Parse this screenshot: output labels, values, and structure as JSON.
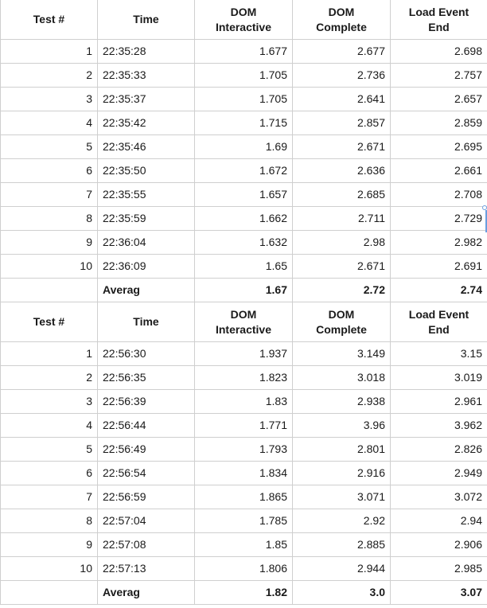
{
  "blocks": [
    {
      "headers": [
        "Test #",
        "Time",
        "DOM\nInteractive",
        "DOM\nComplete",
        "Load Event\nEnd"
      ],
      "rows": [
        {
          "test": "1",
          "time": "22:35:28",
          "dom_interactive": "1.677",
          "dom_complete": "2.677",
          "load_event_end": "2.698"
        },
        {
          "test": "2",
          "time": "22:35:33",
          "dom_interactive": "1.705",
          "dom_complete": "2.736",
          "load_event_end": "2.757"
        },
        {
          "test": "3",
          "time": "22:35:37",
          "dom_interactive": "1.705",
          "dom_complete": "2.641",
          "load_event_end": "2.657"
        },
        {
          "test": "4",
          "time": "22:35:42",
          "dom_interactive": "1.715",
          "dom_complete": "2.857",
          "load_event_end": "2.859"
        },
        {
          "test": "5",
          "time": "22:35:46",
          "dom_interactive": "1.69",
          "dom_complete": "2.671",
          "load_event_end": "2.695"
        },
        {
          "test": "6",
          "time": "22:35:50",
          "dom_interactive": "1.672",
          "dom_complete": "2.636",
          "load_event_end": "2.661"
        },
        {
          "test": "7",
          "time": "22:35:55",
          "dom_interactive": "1.657",
          "dom_complete": "2.685",
          "load_event_end": "2.708"
        },
        {
          "test": "8",
          "time": "22:35:59",
          "dom_interactive": "1.662",
          "dom_complete": "2.711",
          "load_event_end": "2.729"
        },
        {
          "test": "9",
          "time": "22:36:04",
          "dom_interactive": "1.632",
          "dom_complete": "2.98",
          "load_event_end": "2.982"
        },
        {
          "test": "10",
          "time": "22:36:09",
          "dom_interactive": "1.65",
          "dom_complete": "2.671",
          "load_event_end": "2.691"
        }
      ],
      "average": {
        "label": "Averag",
        "dom_interactive": "1.67",
        "dom_complete": "2.72",
        "load_event_end": "2.74"
      }
    },
    {
      "headers": [
        "Test #",
        "Time",
        "DOM\nInteractive",
        "DOM\nComplete",
        "Load Event\nEnd"
      ],
      "rows": [
        {
          "test": "1",
          "time": "22:56:30",
          "dom_interactive": "1.937",
          "dom_complete": "3.149",
          "load_event_end": "3.15"
        },
        {
          "test": "2",
          "time": "22:56:35",
          "dom_interactive": "1.823",
          "dom_complete": "3.018",
          "load_event_end": "3.019"
        },
        {
          "test": "3",
          "time": "22:56:39",
          "dom_interactive": "1.83",
          "dom_complete": "2.938",
          "load_event_end": "2.961"
        },
        {
          "test": "4",
          "time": "22:56:44",
          "dom_interactive": "1.771",
          "dom_complete": "3.96",
          "load_event_end": "3.962"
        },
        {
          "test": "5",
          "time": "22:56:49",
          "dom_interactive": "1.793",
          "dom_complete": "2.801",
          "load_event_end": "2.826"
        },
        {
          "test": "6",
          "time": "22:56:54",
          "dom_interactive": "1.834",
          "dom_complete": "2.916",
          "load_event_end": "2.949"
        },
        {
          "test": "7",
          "time": "22:56:59",
          "dom_interactive": "1.865",
          "dom_complete": "3.071",
          "load_event_end": "3.072"
        },
        {
          "test": "8",
          "time": "22:57:04",
          "dom_interactive": "1.785",
          "dom_complete": "2.92",
          "load_event_end": "2.94"
        },
        {
          "test": "9",
          "time": "22:57:08",
          "dom_interactive": "1.85",
          "dom_complete": "2.885",
          "load_event_end": "2.906"
        },
        {
          "test": "10",
          "time": "22:57:13",
          "dom_interactive": "1.806",
          "dom_complete": "2.944",
          "load_event_end": "2.985"
        }
      ],
      "average": {
        "label": "Averag",
        "dom_interactive": "1.82",
        "dom_complete": "3.0",
        "load_event_end": "3.07"
      }
    }
  ],
  "colors": {
    "grid_line": "#cfcfcf",
    "text": "#1a1a1a",
    "selection": "#6a9ee0"
  }
}
